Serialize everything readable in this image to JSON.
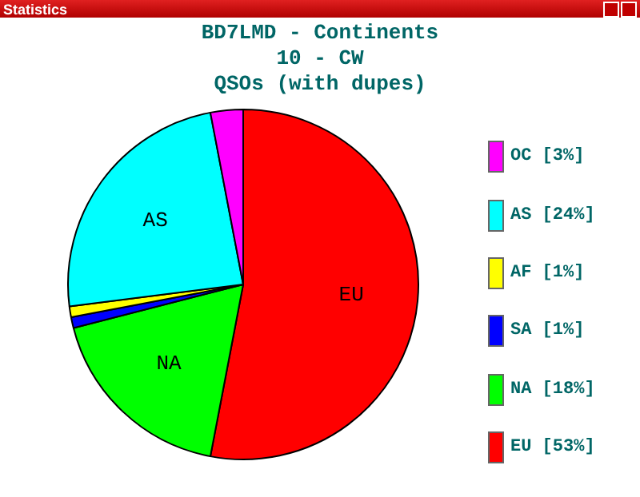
{
  "chart_data": {
    "type": "pie",
    "title": "BD7LMD - Continents",
    "subtitle": "10 - CW\nQSOs (with dupes)",
    "categories": [
      "OC",
      "AS",
      "AF",
      "SA",
      "NA",
      "EU"
    ],
    "values": [
      3,
      24,
      1,
      1,
      18,
      53
    ],
    "colors": [
      "#ff00ff",
      "#00ffff",
      "#ffff00",
      "#0000ff",
      "#00ff00",
      "#ff0000"
    ],
    "value_labels": [
      "[3%]",
      "[24%]",
      "[1%]",
      "[1%]",
      "[18%]",
      "[53%]"
    ],
    "legend": "right",
    "annotations": [
      "Statistics",
      {
        "text": "AS",
        "x": "AS"
      },
      {
        "text": "NA",
        "x": "NA"
      },
      {
        "text": "EU",
        "x": "EU"
      }
    ]
  }
}
